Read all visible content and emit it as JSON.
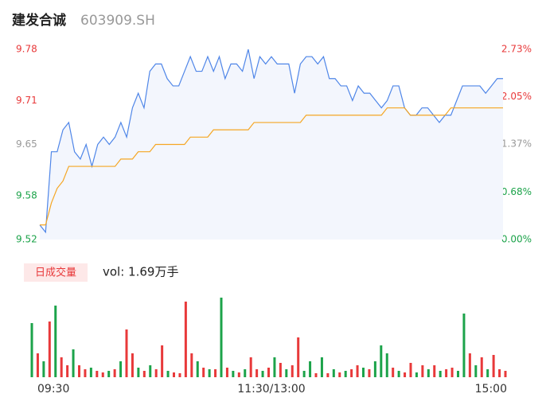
{
  "chart_data": [
    {
      "type": "line",
      "title": "建发合诚",
      "subtitle": "603909.SH",
      "x": [
        0,
        3,
        6,
        9,
        12,
        15,
        18,
        21,
        24,
        27,
        30,
        33,
        36,
        39,
        42,
        45,
        48,
        51,
        54,
        57,
        60,
        63,
        66,
        69,
        72,
        75,
        78,
        81,
        84,
        87,
        90,
        93,
        96,
        99,
        102,
        105,
        108,
        111,
        114,
        117,
        120,
        123,
        126,
        129,
        132,
        135,
        138,
        141,
        144,
        147,
        150,
        153,
        156,
        159,
        162,
        165,
        168,
        171,
        174,
        177,
        180,
        183,
        186,
        189,
        192,
        195,
        198,
        201,
        204,
        207,
        210,
        213,
        216,
        219,
        222,
        225,
        228,
        231,
        234,
        237,
        240
      ],
      "series": [
        {
          "color": "#4f86e8",
          "values": [
            9.54,
            9.53,
            9.64,
            9.64,
            9.67,
            9.68,
            9.64,
            9.63,
            9.65,
            9.62,
            9.65,
            9.66,
            9.65,
            9.66,
            9.68,
            9.66,
            9.7,
            9.72,
            9.7,
            9.75,
            9.76,
            9.76,
            9.74,
            9.73,
            9.73,
            9.75,
            9.77,
            9.75,
            9.75,
            9.77,
            9.75,
            9.77,
            9.74,
            9.76,
            9.76,
            9.75,
            9.78,
            9.74,
            9.77,
            9.76,
            9.77,
            9.76,
            9.76,
            9.76,
            9.72,
            9.76,
            9.77,
            9.77,
            9.76,
            9.77,
            9.74,
            9.74,
            9.73,
            9.73,
            9.71,
            9.73,
            9.72,
            9.72,
            9.71,
            9.7,
            9.71,
            9.73,
            9.73,
            9.7,
            9.69,
            9.69,
            9.7,
            9.7,
            9.69,
            9.68,
            9.69,
            9.69,
            9.71,
            9.73,
            9.73,
            9.73,
            9.73,
            9.72,
            9.73,
            9.74,
            9.74
          ]
        },
        {
          "color": "#f5a623",
          "values": [
            9.54,
            9.54,
            9.57,
            9.59,
            9.6,
            9.62,
            9.62,
            9.62,
            9.62,
            9.62,
            9.62,
            9.62,
            9.62,
            9.62,
            9.63,
            9.63,
            9.63,
            9.64,
            9.64,
            9.64,
            9.65,
            9.65,
            9.65,
            9.65,
            9.65,
            9.65,
            9.66,
            9.66,
            9.66,
            9.66,
            9.67,
            9.67,
            9.67,
            9.67,
            9.67,
            9.67,
            9.67,
            9.68,
            9.68,
            9.68,
            9.68,
            9.68,
            9.68,
            9.68,
            9.68,
            9.68,
            9.69,
            9.69,
            9.69,
            9.69,
            9.69,
            9.69,
            9.69,
            9.69,
            9.69,
            9.69,
            9.69,
            9.69,
            9.69,
            9.69,
            9.7,
            9.7,
            9.7,
            9.7,
            9.69,
            9.69,
            9.69,
            9.69,
            9.69,
            9.69,
            9.69,
            9.7,
            9.7,
            9.7,
            9.7,
            9.7,
            9.7,
            9.7,
            9.7,
            9.7,
            9.7
          ]
        }
      ],
      "xlim": [
        0,
        240
      ],
      "ylim": [
        9.52,
        9.78
      ],
      "yticks": [
        9.78,
        9.71,
        9.65,
        9.58,
        9.52
      ],
      "y2lim": [
        0,
        2.73
      ],
      "y2ticks": [
        {
          "value": 2.73,
          "label": "2.73%"
        },
        {
          "value": 2.05,
          "label": "2.05%"
        },
        {
          "value": 1.37,
          "label": "1.37%"
        },
        {
          "value": 0.68,
          "label": "0.68%"
        },
        {
          "value": 0,
          "label": "0.00%"
        }
      ],
      "tick_colors": [
        "#e8393a",
        "#e8393a",
        "#999999",
        "#1ca34a",
        "#1ca34a"
      ],
      "area_color": "#f3f6fd"
    },
    {
      "type": "bar",
      "title": "日成交量",
      "subtitle": "vol: 1.69万手",
      "x": [
        0,
        3,
        6,
        9,
        12,
        15,
        18,
        21,
        24,
        27,
        30,
        33,
        36,
        39,
        42,
        45,
        48,
        51,
        54,
        57,
        60,
        63,
        66,
        69,
        72,
        75,
        78,
        81,
        84,
        87,
        90,
        93,
        96,
        99,
        102,
        105,
        108,
        111,
        114,
        117,
        120,
        123,
        126,
        129,
        132,
        135,
        138,
        141,
        144,
        147,
        150,
        153,
        156,
        159,
        162,
        165,
        168,
        171,
        174,
        177,
        180,
        183,
        186,
        189,
        192,
        195,
        198,
        201,
        204,
        207,
        210,
        213,
        216,
        219,
        222,
        225,
        228,
        231,
        234,
        237,
        240
      ],
      "values": [
        68,
        30,
        20,
        70,
        90,
        25,
        15,
        35,
        15,
        10,
        12,
        8,
        6,
        8,
        10,
        20,
        60,
        30,
        12,
        8,
        15,
        10,
        40,
        8,
        6,
        5,
        95,
        30,
        20,
        12,
        10,
        10,
        100,
        12,
        8,
        6,
        10,
        25,
        10,
        8,
        12,
        25,
        18,
        10,
        15,
        50,
        8,
        20,
        5,
        25,
        5,
        10,
        6,
        8,
        10,
        15,
        12,
        10,
        20,
        40,
        30,
        12,
        8,
        6,
        18,
        6,
        15,
        10,
        15,
        8,
        10,
        12,
        8,
        80,
        30,
        15,
        25,
        10,
        28,
        10,
        8
      ],
      "colors": [
        "#1ca34a",
        "#e8393a",
        "#1ca34a",
        "#e8393a",
        "#1ca34a",
        "#e8393a",
        "#e8393a",
        "#1ca34a",
        "#e8393a",
        "#e8393a",
        "#1ca34a",
        "#e8393a",
        "#e8393a",
        "#1ca34a",
        "#e8393a",
        "#1ca34a",
        "#e8393a",
        "#e8393a",
        "#1ca34a",
        "#e8393a",
        "#1ca34a",
        "#e8393a",
        "#e8393a",
        "#1ca34a",
        "#e8393a",
        "#e8393a",
        "#e8393a",
        "#e8393a",
        "#1ca34a",
        "#e8393a",
        "#1ca34a",
        "#e8393a",
        "#1ca34a",
        "#e8393a",
        "#1ca34a",
        "#e8393a",
        "#1ca34a",
        "#e8393a",
        "#e8393a",
        "#1ca34a",
        "#e8393a",
        "#1ca34a",
        "#e8393a",
        "#1ca34a",
        "#e8393a",
        "#e8393a",
        "#1ca34a",
        "#1ca34a",
        "#e8393a",
        "#1ca34a",
        "#e8393a",
        "#1ca34a",
        "#e8393a",
        "#1ca34a",
        "#e8393a",
        "#e8393a",
        "#1ca34a",
        "#e8393a",
        "#1ca34a",
        "#1ca34a",
        "#1ca34a",
        "#e8393a",
        "#1ca34a",
        "#e8393a",
        "#e8393a",
        "#1ca34a",
        "#e8393a",
        "#1ca34a",
        "#e8393a",
        "#1ca34a",
        "#e8393a",
        "#e8393a",
        "#1ca34a",
        "#1ca34a",
        "#e8393a",
        "#1ca34a",
        "#e8393a",
        "#1ca34a",
        "#e8393a",
        "#e8393a",
        "#e8393a"
      ],
      "ylim": [
        0,
        100
      ],
      "xlim": [
        0,
        240
      ],
      "xticks": [
        {
          "value": 0,
          "label": "09:30"
        },
        {
          "value": 120,
          "label": "11:30/13:00"
        },
        {
          "value": 240,
          "label": "15:00"
        }
      ],
      "badge_color": "#fde8e8"
    }
  ]
}
